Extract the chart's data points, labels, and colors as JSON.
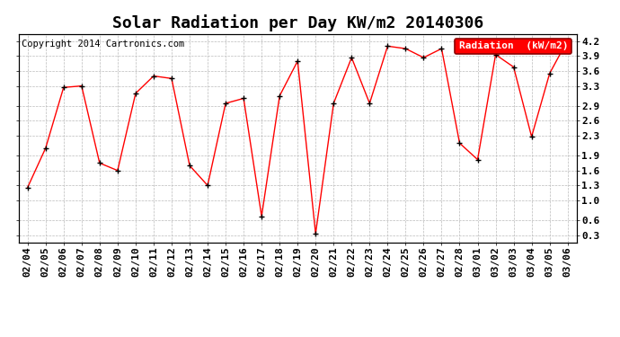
{
  "title": "Solar Radiation per Day KW/m2 20140306",
  "copyright": "Copyright 2014 Cartronics.com",
  "legend_label": "Radiation  (kW/m2)",
  "dates": [
    "02/04",
    "02/05",
    "02/06",
    "02/07",
    "02/08",
    "02/09",
    "02/10",
    "02/11",
    "02/12",
    "02/13",
    "02/14",
    "02/15",
    "02/16",
    "02/17",
    "02/18",
    "02/19",
    "02/20",
    "02/21",
    "02/22",
    "02/23",
    "02/24",
    "02/25",
    "02/26",
    "02/27",
    "02/28",
    "03/01",
    "03/02",
    "03/03",
    "03/04",
    "03/05",
    "03/06"
  ],
  "values": [
    1.26,
    2.05,
    3.27,
    3.3,
    1.75,
    1.6,
    3.15,
    3.5,
    3.45,
    1.7,
    1.3,
    2.95,
    3.05,
    0.68,
    3.1,
    3.8,
    0.33,
    2.95,
    3.87,
    2.95,
    4.1,
    4.05,
    3.87,
    4.05,
    2.15,
    1.82,
    3.93,
    3.68,
    2.28,
    3.55,
    4.22
  ],
  "yticks": [
    0.3,
    0.6,
    1.0,
    1.3,
    1.6,
    1.9,
    2.3,
    2.6,
    2.9,
    3.3,
    3.6,
    3.9,
    4.2
  ],
  "ylim": [
    0.15,
    4.35
  ],
  "line_color": "#ff0000",
  "marker_color": "black",
  "bg_color": "white",
  "grid_color": "#bbbbbb",
  "title_fontsize": 13,
  "tick_fontsize": 8,
  "copyright_fontsize": 7.5
}
